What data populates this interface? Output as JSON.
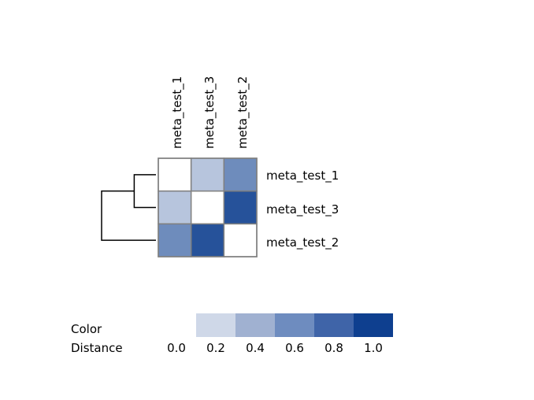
{
  "chart_data": {
    "type": "heatmap",
    "title": "",
    "row_labels": [
      "meta_test_1",
      "meta_test_3",
      "meta_test_2"
    ],
    "column_labels": [
      "meta_test_1",
      "meta_test_3",
      "meta_test_2"
    ],
    "matrix": [
      [
        0.0,
        0.3,
        0.6
      ],
      [
        0.3,
        0.0,
        0.9
      ],
      [
        0.6,
        0.9,
        0.0
      ]
    ],
    "dendrogram": {
      "orientation": "left",
      "merges": [
        {
          "members": [
            "meta_test_1",
            "meta_test_3"
          ],
          "height": 0.3
        },
        {
          "members": [
            "meta_test_1+meta_test_3",
            "meta_test_2"
          ],
          "height": 0.75
        }
      ]
    },
    "legend": {
      "row1_label": "Color",
      "row2_label": "Distance",
      "ticks": [
        "0.0",
        "0.2",
        "0.4",
        "0.6",
        "0.8",
        "1.0"
      ],
      "swatch_colors": [
        "#ffffff",
        "#cfd8e8",
        "#a0b1d1",
        "#6e8cbf",
        "#3f64a8",
        "#0e3f8f"
      ]
    },
    "colorscale": {
      "low": "#ffffff",
      "high": "#0e3f8f"
    },
    "grid_color": "#808080"
  }
}
